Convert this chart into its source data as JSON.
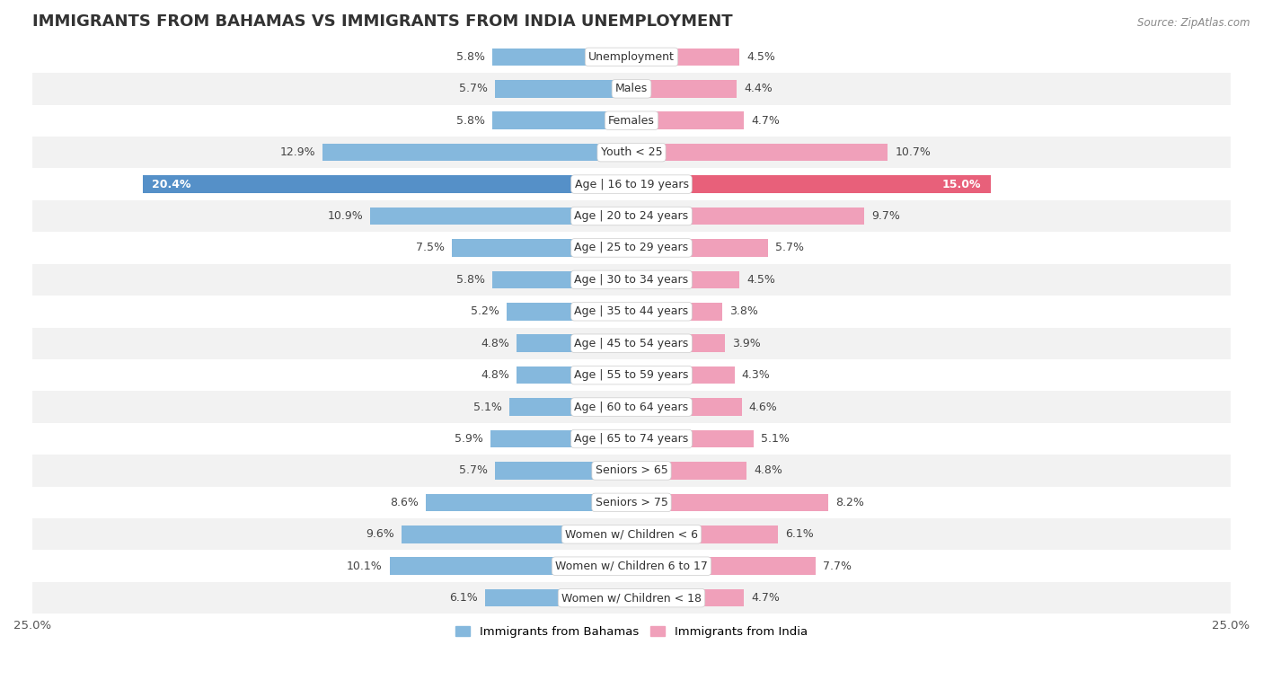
{
  "title": "IMMIGRANTS FROM BAHAMAS VS IMMIGRANTS FROM INDIA UNEMPLOYMENT",
  "source": "Source: ZipAtlas.com",
  "categories": [
    "Unemployment",
    "Males",
    "Females",
    "Youth < 25",
    "Age | 16 to 19 years",
    "Age | 20 to 24 years",
    "Age | 25 to 29 years",
    "Age | 30 to 34 years",
    "Age | 35 to 44 years",
    "Age | 45 to 54 years",
    "Age | 55 to 59 years",
    "Age | 60 to 64 years",
    "Age | 65 to 74 years",
    "Seniors > 65",
    "Seniors > 75",
    "Women w/ Children < 6",
    "Women w/ Children 6 to 17",
    "Women w/ Children < 18"
  ],
  "bahamas_values": [
    5.8,
    5.7,
    5.8,
    12.9,
    20.4,
    10.9,
    7.5,
    5.8,
    5.2,
    4.8,
    4.8,
    5.1,
    5.9,
    5.7,
    8.6,
    9.6,
    10.1,
    6.1
  ],
  "india_values": [
    4.5,
    4.4,
    4.7,
    10.7,
    15.0,
    9.7,
    5.7,
    4.5,
    3.8,
    3.9,
    4.3,
    4.6,
    5.1,
    4.8,
    8.2,
    6.1,
    7.7,
    4.7
  ],
  "bahamas_color": "#85b8dd",
  "india_color": "#f0a0ba",
  "highlight_bahamas_color": "#5590c8",
  "highlight_india_color": "#e8607a",
  "xlim": 25.0,
  "bar_height": 0.55,
  "bg_color_odd": "#f0f0f0",
  "bg_color_even": "#fafafa",
  "title_fontsize": 13,
  "label_fontsize": 9,
  "value_fontsize": 9,
  "legend_fontsize": 9.5
}
